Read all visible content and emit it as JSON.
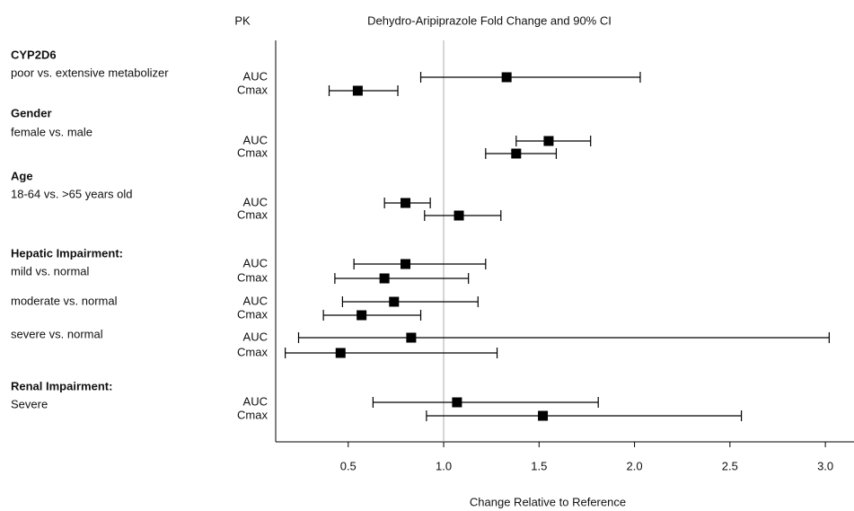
{
  "chart_data": {
    "type": "forest",
    "title": "Dehydro-Aripiprazole Fold Change and 90% CI",
    "pk_header": "PK",
    "x_label": "Change Relative to Reference",
    "reference_line": 1,
    "xlim": [
      0.12,
      3.15
    ],
    "xticks": [
      0.5,
      {
        "value": 1,
        "label": "1.0"
      },
      1.5,
      {
        "value": 2,
        "label": "2.0"
      },
      2.5,
      {
        "value": 3,
        "label": "3.0"
      }
    ],
    "color": "#000000",
    "groups": [
      {
        "title": "CYP2D6",
        "subtitle": "poor vs. extensive metabolizer",
        "rows": [
          {
            "pk": "AUC",
            "value": 1.33,
            "lower": 0.88,
            "upper": 2.03
          },
          {
            "pk": "Cmax",
            "value": 0.55,
            "lower": 0.4,
            "upper": 0.76
          }
        ]
      },
      {
        "title": "Gender",
        "subtitle": "female vs. male",
        "rows": [
          {
            "pk": "AUC",
            "value": 1.55,
            "lower": 1.38,
            "upper": 1.77
          },
          {
            "pk": "Cmax",
            "value": 1.38,
            "lower": 1.22,
            "upper": 1.59
          }
        ]
      },
      {
        "title": "Age",
        "subtitle": "18-64 vs. >65 years old",
        "rows": [
          {
            "pk": "AUC",
            "value": 0.8,
            "lower": 0.69,
            "upper": 0.93
          },
          {
            "pk": "Cmax",
            "value": 1.08,
            "lower": 0.9,
            "upper": 1.3
          }
        ]
      },
      {
        "title": "Hepatic Impairment:",
        "subtitle": "mild vs. normal",
        "rows": [
          {
            "pk": "AUC",
            "value": 0.8,
            "lower": 0.53,
            "upper": 1.22
          },
          {
            "pk": "Cmax",
            "value": 0.69,
            "lower": 0.43,
            "upper": 1.13
          }
        ]
      },
      {
        "subtitle": "moderate vs. normal",
        "rows": [
          {
            "pk": "AUC",
            "value": 0.74,
            "lower": 0.47,
            "upper": 1.18
          },
          {
            "pk": "Cmax",
            "value": 0.57,
            "lower": 0.37,
            "upper": 0.88
          }
        ]
      },
      {
        "subtitle": "severe vs. normal",
        "rows": [
          {
            "pk": "AUC",
            "value": 0.83,
            "lower": 0.24,
            "upper": 3.02
          },
          {
            "pk": "Cmax",
            "value": 0.46,
            "lower": 0.17,
            "upper": 1.28
          }
        ]
      },
      {
        "title": "Renal Impairment:",
        "subtitle": "Severe",
        "rows": [
          {
            "pk": "AUC",
            "value": 1.07,
            "lower": 0.63,
            "upper": 1.81
          },
          {
            "pk": "Cmax",
            "value": 1.52,
            "lower": 0.91,
            "upper": 2.56
          }
        ]
      }
    ]
  }
}
